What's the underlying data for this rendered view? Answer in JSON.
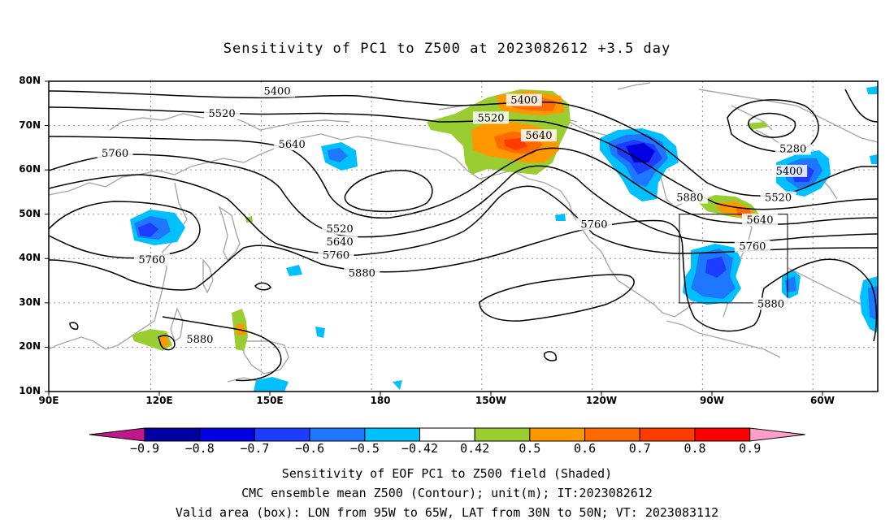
{
  "title": "Sensitivity of PC1 to Z500 at 2023082612 +3.5 day",
  "map": {
    "lat_labels": [
      "80N",
      "70N",
      "60N",
      "50N",
      "40N",
      "30N",
      "20N",
      "10N"
    ],
    "lon_labels": [
      "90E",
      "120E",
      "150E",
      "180",
      "150W",
      "120W",
      "90W",
      "60W"
    ],
    "contour_labels": [
      {
        "text": "5400",
        "lon": 152,
        "lat": 77.5
      },
      {
        "text": "5520",
        "lon": 137,
        "lat": 72.5
      },
      {
        "text": "5640",
        "lon": 156,
        "lat": 65.5
      },
      {
        "text": "5760",
        "lon": 108,
        "lat": 63.5
      },
      {
        "text": "5760",
        "lon": 118,
        "lat": 39.5
      },
      {
        "text": "5880",
        "lon": 131,
        "lat": 21.5
      },
      {
        "text": "5520",
        "lon": 169,
        "lat": 46.5
      },
      {
        "text": "5640",
        "lon": 169,
        "lat": 43.5
      },
      {
        "text": "5760",
        "lon": 168,
        "lat": 40.5
      },
      {
        "text": "5880",
        "lon": 175,
        "lat": 36.5
      },
      {
        "text": "5400",
        "lon": -141,
        "lat": 75.5
      },
      {
        "text": "5520",
        "lon": -150,
        "lat": 71.5
      },
      {
        "text": "5640",
        "lon": -137,
        "lat": 67.5
      },
      {
        "text": "5760",
        "lon": -122,
        "lat": 47.5
      },
      {
        "text": "5880",
        "lon": -96,
        "lat": 53.5
      },
      {
        "text": "5520",
        "lon": -72,
        "lat": 53.5
      },
      {
        "text": "5640",
        "lon": -77,
        "lat": 48.5
      },
      {
        "text": "5760",
        "lon": -79,
        "lat": 42.5
      },
      {
        "text": "5880",
        "lon": -74,
        "lat": 29.5
      },
      {
        "text": "5280",
        "lon": -68,
        "lat": 64.5
      },
      {
        "text": "5400",
        "lon": -69,
        "lat": 59.5
      }
    ],
    "valid_box": {
      "lon_min": -95,
      "lon_max": -65,
      "lat_min": 30,
      "lat_max": 50
    }
  },
  "colorbar": {
    "labels": [
      "-0.9",
      "-0.8",
      "-0.7",
      "-0.6",
      "-0.5",
      "-0.42",
      "0.42",
      "0.5",
      "0.6",
      "0.7",
      "0.8",
      "0.9"
    ],
    "colors": [
      "#0000a0",
      "#0000e0",
      "#1c3cff",
      "#1e78ff",
      "#00c0ff",
      "#ffffff",
      "#9acd32",
      "#ff9800",
      "#ff6a00",
      "#ff3c00",
      "#ff0000"
    ],
    "low_extend": "#c0188c",
    "high_extend": "#ff9ec8"
  },
  "footer": {
    "line1": "Sensitivity of EOF PC1 to Z500 field (Shaded)",
    "line2": "CMC ensemble mean Z500 (Contour); unit(m); IT:2023082612",
    "line3": "Valid area (box): LON from 95W to 65W, LAT from 30N to 50N; VT: 2023083112"
  }
}
